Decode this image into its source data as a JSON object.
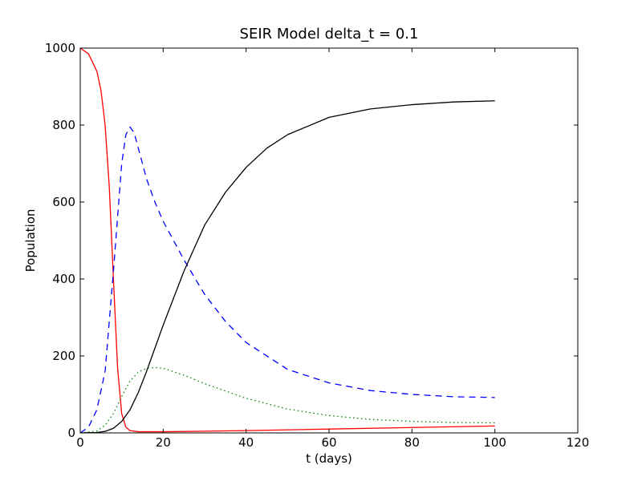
{
  "chart_data": {
    "type": "line",
    "title": "SEIR Model delta_t = 0.1",
    "xlabel": "t (days)",
    "ylabel": "Population",
    "xlim": [
      0,
      120
    ],
    "ylim": [
      0,
      1000
    ],
    "xticks": [
      0,
      20,
      40,
      60,
      80,
      100,
      120
    ],
    "yticks": [
      0,
      200,
      400,
      600,
      800,
      1000
    ],
    "grid": false,
    "legend": "none",
    "series": [
      {
        "color": "#ff0000",
        "style": "solid",
        "x": [
          0,
          2,
          4,
          5,
          6,
          7,
          8,
          9,
          10,
          11,
          12,
          14,
          20,
          40,
          60,
          80,
          100
        ],
        "y": [
          1000,
          985,
          940,
          890,
          800,
          640,
          400,
          170,
          50,
          15,
          6,
          3,
          3,
          6,
          10,
          14,
          18
        ]
      },
      {
        "color": "#0000ff",
        "style": "dashed",
        "x": [
          0,
          2,
          4,
          6,
          8,
          10,
          11,
          12,
          13,
          14,
          16,
          18,
          20,
          25,
          30,
          35,
          40,
          50,
          60,
          70,
          80,
          90,
          100
        ],
        "y": [
          0,
          15,
          60,
          160,
          420,
          700,
          775,
          795,
          780,
          740,
          660,
          600,
          550,
          450,
          360,
          290,
          235,
          165,
          130,
          110,
          100,
          94,
          92
        ]
      },
      {
        "color": "#008000",
        "style": "dotted",
        "x": [
          0,
          4,
          6,
          8,
          10,
          12,
          14,
          16,
          18,
          20,
          25,
          30,
          40,
          50,
          60,
          70,
          80,
          90,
          100
        ],
        "y": [
          0,
          5,
          20,
          50,
          95,
          135,
          158,
          168,
          170,
          168,
          150,
          128,
          90,
          62,
          45,
          35,
          30,
          27,
          26
        ]
      },
      {
        "color": "#000000",
        "style": "solid",
        "x": [
          0,
          4,
          6,
          8,
          10,
          12,
          14,
          16,
          18,
          20,
          25,
          30,
          35,
          40,
          45,
          50,
          60,
          70,
          80,
          90,
          100
        ],
        "y": [
          0,
          1,
          4,
          12,
          30,
          60,
          105,
          160,
          220,
          280,
          420,
          540,
          625,
          690,
          740,
          775,
          820,
          842,
          853,
          860,
          863
        ]
      }
    ]
  }
}
